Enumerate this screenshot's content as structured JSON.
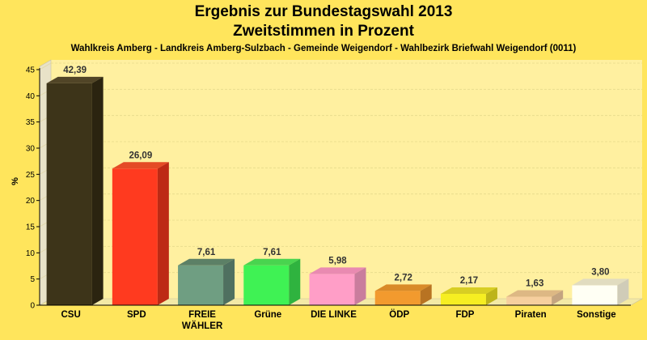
{
  "chart_data": {
    "type": "bar",
    "title": "Ergebnis zur Bundestagswahl 2013",
    "title2": "Zweitstimmen in Prozent",
    "subtitle": "Wahlkreis Amberg - Landkreis Amberg-Sulzbach - Gemeinde Weigendorf - Wahlbezirk Briefwahl Weigendorf (0011)",
    "ylabel": "%",
    "xlabel": "",
    "ylim": [
      0,
      45
    ],
    "yticks": [
      0,
      5,
      10,
      15,
      20,
      25,
      30,
      35,
      40,
      45
    ],
    "grid": true,
    "categories": [
      "CSU",
      "SPD",
      "FREIE WÄHLER",
      "Grüne",
      "DIE LINKE",
      "ÖDP",
      "FDP",
      "Piraten",
      "Sonstige"
    ],
    "values": [
      42.39,
      26.09,
      7.61,
      7.61,
      5.98,
      2.72,
      2.17,
      1.63,
      3.8
    ],
    "value_labels": [
      "42,39",
      "26,09",
      "7,61",
      "7,61",
      "5,98",
      "2,72",
      "2,17",
      "1,63",
      "3,80"
    ],
    "colors": [
      "#3D3419",
      "#FF3A1F",
      "#6F9E82",
      "#3FF254",
      "#FF9EC7",
      "#F29A2E",
      "#F6EE22",
      "#F6CF9E",
      "#FFFFF4"
    ],
    "colors_top": [
      "#514527",
      "#E44B26",
      "#5C8066",
      "#49D44F",
      "#E98AB1",
      "#D98A28",
      "#D8CE23",
      "#DDB884",
      "#E1DCC0"
    ],
    "colors_side": [
      "#2B2410",
      "#BD2A15",
      "#4F7060",
      "#2FB33F",
      "#C97D9D",
      "#B87322",
      "#BDB41A",
      "#C4A480",
      "#D0CCB8"
    ]
  }
}
